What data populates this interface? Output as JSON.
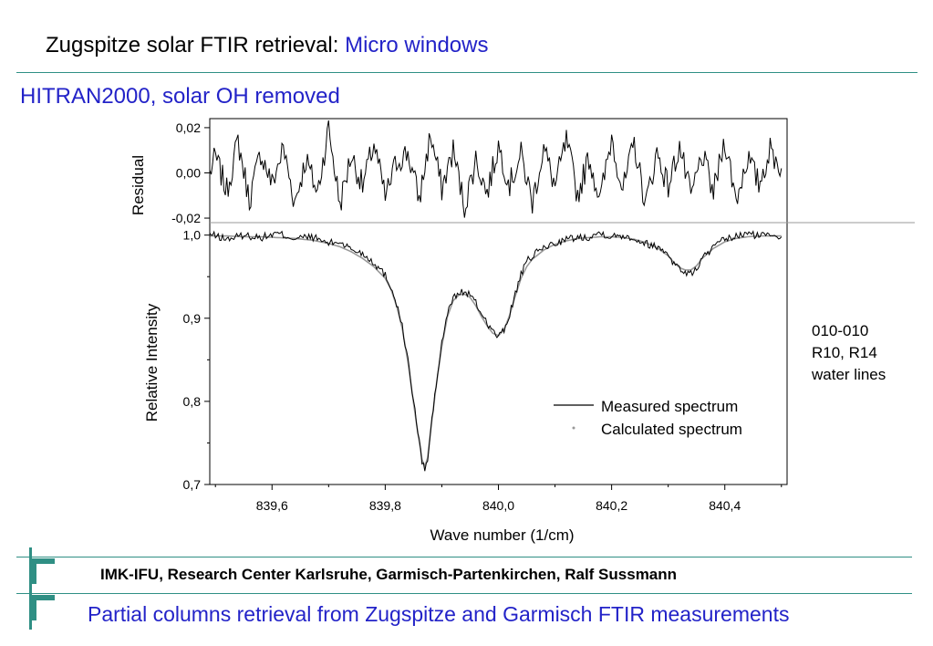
{
  "slide": {
    "title_prefix": "Zugspitze solar FTIR retrieval: ",
    "title_accent": "Micro windows",
    "subtitle": "HITRAN2000, solar OH removed",
    "annotation_lines": [
      "010-010",
      "R10, R14",
      "water lines"
    ],
    "footer_org": "IMK-IFU, Research Center Karlsruhe, Garmisch-Partenkirchen, Ralf Sussmann",
    "footer_title": "Partial columns retrieval from Zugspitze and Garmisch FTIR measurements",
    "colors": {
      "accent_blue": "#2323c8",
      "rule_teal": "#2f8f84"
    }
  },
  "chart_data": [
    {
      "type": "line",
      "panel": "residual",
      "ylabel": "Residual",
      "ylim": [
        -0.022,
        0.024
      ],
      "yticks": [
        "0,02",
        "0,00",
        "-0,02"
      ],
      "ytick_values": [
        0.02,
        0.0,
        -0.02
      ],
      "x": [
        839.49,
        839.5,
        839.52,
        839.54,
        839.56,
        839.58,
        839.6,
        839.62,
        839.64,
        839.66,
        839.68,
        839.7,
        839.72,
        839.74,
        839.76,
        839.78,
        839.8,
        839.82,
        839.84,
        839.86,
        839.88,
        839.9,
        839.92,
        839.94,
        839.96,
        839.98,
        840.0,
        840.02,
        840.04,
        840.06,
        840.08,
        840.1,
        840.12,
        840.14,
        840.16,
        840.18,
        840.2,
        840.22,
        840.24,
        840.26,
        840.28,
        840.3,
        840.32,
        840.34,
        840.36,
        840.38,
        840.4,
        840.42,
        840.44,
        840.46,
        840.48,
        840.5
      ],
      "series": [
        {
          "values": [
            0.0,
            0.007,
            -0.008,
            0.014,
            -0.012,
            0.009,
            -0.005,
            0.011,
            -0.013,
            0.006,
            -0.009,
            0.02,
            -0.014,
            0.008,
            -0.006,
            0.013,
            -0.011,
            0.005,
            0.009,
            -0.012,
            0.017,
            -0.007,
            0.01,
            -0.015,
            0.006,
            -0.009,
            0.012,
            -0.005,
            0.008,
            -0.013,
            0.011,
            -0.006,
            0.014,
            -0.01,
            0.007,
            -0.012,
            0.016,
            -0.008,
            0.013,
            -0.014,
            0.009,
            -0.006,
            0.012,
            -0.011,
            0.008,
            -0.009,
            0.015,
            -0.012,
            0.007,
            -0.005,
            0.01,
            0.002
          ]
        }
      ]
    },
    {
      "type": "line",
      "panel": "spectrum",
      "xlabel": "Wave number  (1/cm)",
      "ylabel": "Relative Intensity",
      "xlim": [
        839.49,
        840.51
      ],
      "ylim": [
        0.7,
        1.015
      ],
      "xticks": [
        "839,6",
        "839,8",
        "840,0",
        "840,2",
        "840,4"
      ],
      "xtick_values": [
        839.6,
        839.8,
        840.0,
        840.2,
        840.4
      ],
      "yticks": [
        "1,0",
        "0,9",
        "0,8",
        "0,7"
      ],
      "ytick_values": [
        1.0,
        0.9,
        0.8,
        0.7
      ],
      "x": [
        839.49,
        839.52,
        839.55,
        839.58,
        839.61,
        839.64,
        839.67,
        839.7,
        839.72,
        839.74,
        839.76,
        839.78,
        839.8,
        839.81,
        839.82,
        839.83,
        839.84,
        839.85,
        839.86,
        839.865,
        839.87,
        839.875,
        839.88,
        839.89,
        839.9,
        839.91,
        839.92,
        839.93,
        839.94,
        839.95,
        839.96,
        839.97,
        839.98,
        839.99,
        840.0,
        840.01,
        840.02,
        840.03,
        840.04,
        840.05,
        840.06,
        840.08,
        840.1,
        840.12,
        840.14,
        840.16,
        840.18,
        840.2,
        840.22,
        840.24,
        840.26,
        840.28,
        840.3,
        840.31,
        840.32,
        840.33,
        840.34,
        840.35,
        840.36,
        840.38,
        840.4,
        840.42,
        840.44,
        840.46,
        840.48,
        840.5
      ],
      "series": [
        {
          "name": "Measured spectrum",
          "style": "line",
          "color": "#000000",
          "values": [
            1.001,
            0.995,
            1.0,
            0.997,
            1.002,
            0.996,
            0.998,
            0.99,
            0.992,
            0.983,
            0.978,
            0.967,
            0.952,
            0.938,
            0.918,
            0.89,
            0.85,
            0.8,
            0.752,
            0.728,
            0.718,
            0.73,
            0.762,
            0.82,
            0.87,
            0.905,
            0.925,
            0.93,
            0.932,
            0.928,
            0.918,
            0.906,
            0.895,
            0.884,
            0.878,
            0.885,
            0.905,
            0.93,
            0.952,
            0.968,
            0.975,
            0.985,
            0.99,
            0.995,
            0.997,
            0.998,
            1.003,
            0.998,
            1.0,
            0.996,
            0.99,
            0.986,
            0.978,
            0.966,
            0.96,
            0.955,
            0.953,
            0.96,
            0.972,
            0.985,
            0.995,
            0.998,
            1.002,
            0.999,
            1.002,
            0.998
          ]
        },
        {
          "name": "Calculated spectrum",
          "style": "dots",
          "color": "#999999",
          "values": [
            0.999,
            0.999,
            0.998,
            0.998,
            0.997,
            0.996,
            0.994,
            0.99,
            0.986,
            0.98,
            0.972,
            0.962,
            0.948,
            0.935,
            0.915,
            0.888,
            0.848,
            0.798,
            0.752,
            0.73,
            0.722,
            0.732,
            0.764,
            0.818,
            0.866,
            0.902,
            0.921,
            0.928,
            0.929,
            0.925,
            0.915,
            0.902,
            0.891,
            0.882,
            0.879,
            0.886,
            0.904,
            0.927,
            0.948,
            0.962,
            0.971,
            0.982,
            0.989,
            0.993,
            0.996,
            0.997,
            0.998,
            0.998,
            0.997,
            0.995,
            0.991,
            0.985,
            0.975,
            0.967,
            0.961,
            0.958,
            0.958,
            0.963,
            0.972,
            0.984,
            0.992,
            0.996,
            0.998,
            0.999,
            0.999,
            0.999
          ]
        }
      ],
      "legend": "bottom-right"
    }
  ]
}
